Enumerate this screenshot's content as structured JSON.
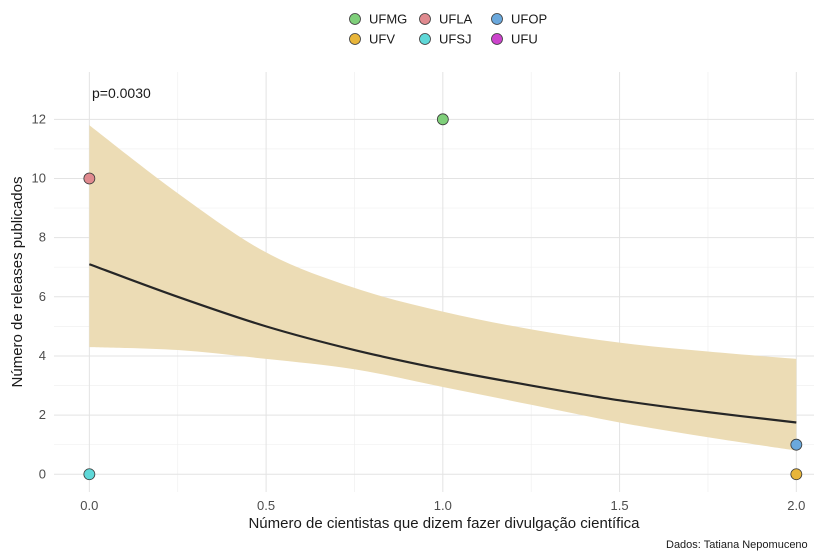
{
  "chart_data": {
    "type": "scatter",
    "xlabel": "Número de cientistas que dizem fazer divulgação científica",
    "ylabel": "Número de releases publicados",
    "xlim": [
      -0.1,
      2.05
    ],
    "ylim": [
      -0.6,
      13.6
    ],
    "x_ticks": [
      "0.0",
      "0.5",
      "1.0",
      "1.5",
      "2.0"
    ],
    "y_ticks": [
      "0",
      "2",
      "4",
      "6",
      "8",
      "10",
      "12"
    ],
    "grid": true,
    "legend_position": "top",
    "annotation": "p=0.0030",
    "caption": "Dados: Tatiana Nepomuceno",
    "series": [
      {
        "name": "UFMG",
        "color": "#7fcf7a",
        "points": [
          [
            1.0,
            12
          ]
        ]
      },
      {
        "name": "UFLA",
        "color": "#e08a8f",
        "points": [
          [
            0.0,
            10
          ]
        ]
      },
      {
        "name": "UFOP",
        "color": "#6aa8dc",
        "points": [
          [
            2.0,
            1
          ]
        ]
      },
      {
        "name": "UFV",
        "color": "#e8b53a",
        "points": [
          [
            2.0,
            0
          ]
        ]
      },
      {
        "name": "UFSJ",
        "color": "#5fd8d8",
        "points": [
          [
            0.0,
            0
          ]
        ]
      },
      {
        "name": "UFU",
        "color": "#cc44cc",
        "points": []
      }
    ],
    "fit_line": {
      "color": "#262626",
      "x": [
        0.0,
        0.25,
        0.5,
        0.75,
        1.0,
        1.25,
        1.5,
        1.75,
        2.0
      ],
      "y": [
        7.1,
        6.0,
        5.0,
        4.2,
        3.55,
        3.0,
        2.5,
        2.1,
        1.75
      ]
    },
    "confidence_band": {
      "color": "#ecdcb5",
      "x": [
        0.0,
        0.25,
        0.5,
        0.75,
        1.0,
        1.25,
        1.5,
        1.75,
        2.0
      ],
      "lower": [
        4.3,
        4.2,
        3.9,
        3.55,
        2.95,
        2.35,
        1.75,
        1.25,
        0.8
      ],
      "upper": [
        11.8,
        9.5,
        7.5,
        6.3,
        5.5,
        4.9,
        4.45,
        4.15,
        3.9
      ]
    }
  }
}
